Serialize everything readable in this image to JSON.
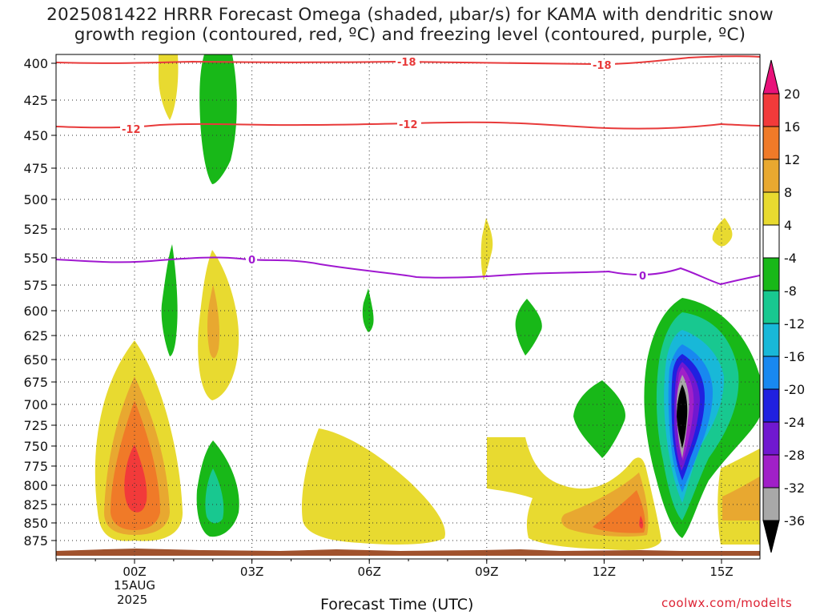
{
  "title": {
    "line1": "2025081422 HRRR Forecast Omega (shaded, µbar/s) for KAMA with dendritic snow",
    "line2": "growth region (contoured, red, ºC) and freezing level (contoured, purple, ºC)"
  },
  "credit": "coolwx.com/modelts",
  "chart_data": {
    "type": "heatmap",
    "title": "2025081422 HRRR Forecast Omega (shaded, µbar/s) for KAMA with dendritic snow growth region (contoured, red, ºC) and freezing level (contoured, purple, ºC)",
    "xlabel": "Forecast Time (UTC)",
    "ylabel": "",
    "x_ticks": [
      "00Z",
      "03Z",
      "06Z",
      "09Z",
      "12Z",
      "15Z"
    ],
    "x_tick_hours": [
      0,
      3,
      6,
      9,
      12,
      15
    ],
    "x_date_label": [
      "15AUG",
      "2025"
    ],
    "xlim_hours": [
      -2,
      16
    ],
    "y_ticks": [
      400,
      425,
      450,
      475,
      500,
      525,
      550,
      575,
      600,
      625,
      650,
      675,
      700,
      725,
      750,
      775,
      800,
      825,
      850,
      875
    ],
    "ylim_hPa": [
      900,
      390
    ],
    "colorbar": {
      "labels": [
        "20",
        "16",
        "12",
        "8",
        "4",
        "-4",
        "-8",
        "-12",
        "-16",
        "-20",
        "-24",
        "-28",
        "-32",
        "-36"
      ],
      "colors": [
        "#e8127a",
        "#f23a3a",
        "#f07a28",
        "#e8a830",
        "#e8da30",
        "#ffffff",
        "#18b818",
        "#18c890",
        "#18b8d8",
        "#1888f0",
        "#2020e0",
        "#7018d0",
        "#a020c8",
        "#a8a8a8",
        "#000000"
      ]
    },
    "contours": [
      {
        "name": "dendritic snow growth region",
        "color": "#e83a3a",
        "levels": [
          "-18",
          "-12"
        ]
      },
      {
        "name": "freezing level",
        "color": "#a018d0",
        "levels": [
          "0"
        ]
      }
    ],
    "omega_regions": [
      {
        "value": 4,
        "center_hour": 0.0,
        "pressure_range": [
          630,
          880
        ]
      },
      {
        "value": 16,
        "center_hour": 0.0,
        "pressure_range": [
          760,
          830
        ]
      },
      {
        "value": 4,
        "center_hour": 2.0,
        "pressure_range": [
          545,
          695
        ]
      },
      {
        "value": -8,
        "center_hour": 2.0,
        "pressure_range": [
          390,
          485
        ]
      },
      {
        "value": -8,
        "center_hour": 2.0,
        "pressure_range": [
          745,
          870
        ]
      },
      {
        "value": 4,
        "center_hour": 6.0,
        "pressure_range": [
          720,
          885
        ]
      },
      {
        "value": 4,
        "center_hour": 10.0,
        "pressure_range": [
          740,
          885
        ]
      },
      {
        "value": -8,
        "center_hour": 12.0,
        "pressure_range": [
          680,
          765
        ]
      },
      {
        "value": 16,
        "center_hour": 12.9,
        "pressure_range": [
          835,
          860
        ]
      },
      {
        "value": -36,
        "center_hour": 14.0,
        "pressure_range": [
          690,
          760
        ]
      },
      {
        "value": -8,
        "center_hour": 14.0,
        "pressure_range": [
          595,
          875
        ]
      }
    ]
  }
}
